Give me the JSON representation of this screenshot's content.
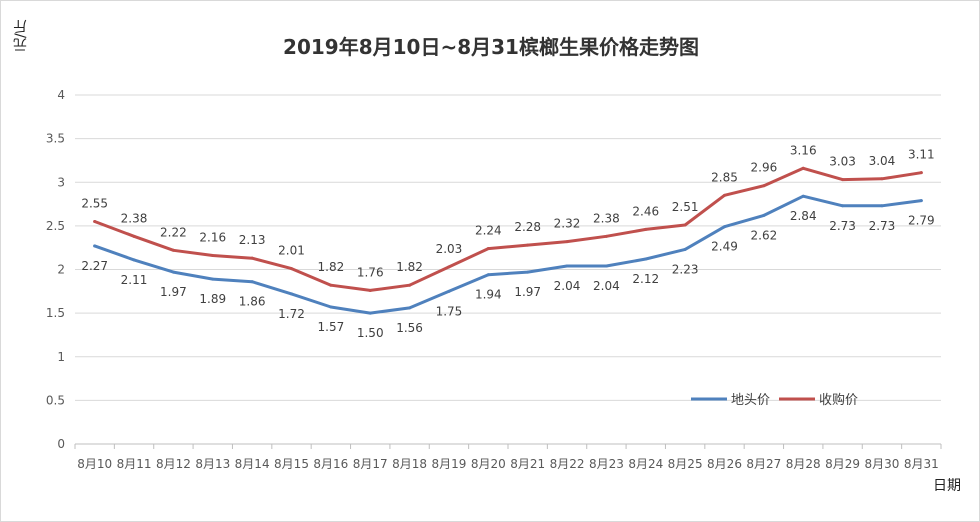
{
  "chart_data": {
    "type": "line",
    "title": "2019年8月10日~8月31槟榔生果价格走势图",
    "ylabel": "元/斤",
    "xlabel": "日期",
    "ylim": [
      0,
      4
    ],
    "yticks": [
      "0",
      "0.5",
      "1",
      "1.5",
      "2",
      "2.5",
      "3",
      "3.5",
      "4"
    ],
    "grid": true,
    "legend_position": "right",
    "categories": [
      "8月10",
      "8月11",
      "8月12",
      "8月13",
      "8月14",
      "8月15",
      "8月16",
      "8月17",
      "8月18",
      "8月19",
      "8月20",
      "8月21",
      "8月22",
      "8月23",
      "8月24",
      "8月25",
      "8月26",
      "8月27",
      "8月28",
      "8月29",
      "8月30",
      "8月31"
    ],
    "series": [
      {
        "name": "地头价",
        "color": "#4f81bd",
        "values": [
          2.27,
          2.11,
          1.97,
          1.89,
          1.86,
          1.72,
          1.57,
          1.5,
          1.56,
          1.75,
          1.94,
          1.97,
          2.04,
          2.04,
          2.12,
          2.23,
          2.49,
          2.62,
          2.84,
          2.73,
          2.73,
          2.79
        ],
        "labels": [
          "2.27",
          "2.11",
          "1.97",
          "1.89",
          "1.86",
          "1.72",
          "1.57",
          "1.50",
          "1.56",
          "1.75",
          "1.94",
          "1.97",
          "2.04",
          "2.04",
          "2.12",
          "2.23",
          "2.49",
          "2.62",
          "2.84",
          "2.73",
          "2.73",
          "2.79"
        ]
      },
      {
        "name": "收购价",
        "color": "#c0504d",
        "values": [
          2.55,
          2.38,
          2.22,
          2.16,
          2.13,
          2.01,
          1.82,
          1.76,
          1.82,
          2.03,
          2.24,
          2.28,
          2.32,
          2.38,
          2.46,
          2.51,
          2.85,
          2.96,
          3.16,
          3.03,
          3.04,
          3.11
        ],
        "labels": [
          "2.55",
          "2.38",
          "2.22",
          "2.16",
          "2.13",
          "2.01",
          "1.82",
          "1.76",
          "1.82",
          "2.03",
          "2.24",
          "2.28",
          "2.32",
          "2.38",
          "2.46",
          "2.51",
          "2.85",
          "2.96",
          "3.16",
          "3.03",
          "3.04",
          "3.11"
        ]
      }
    ]
  }
}
